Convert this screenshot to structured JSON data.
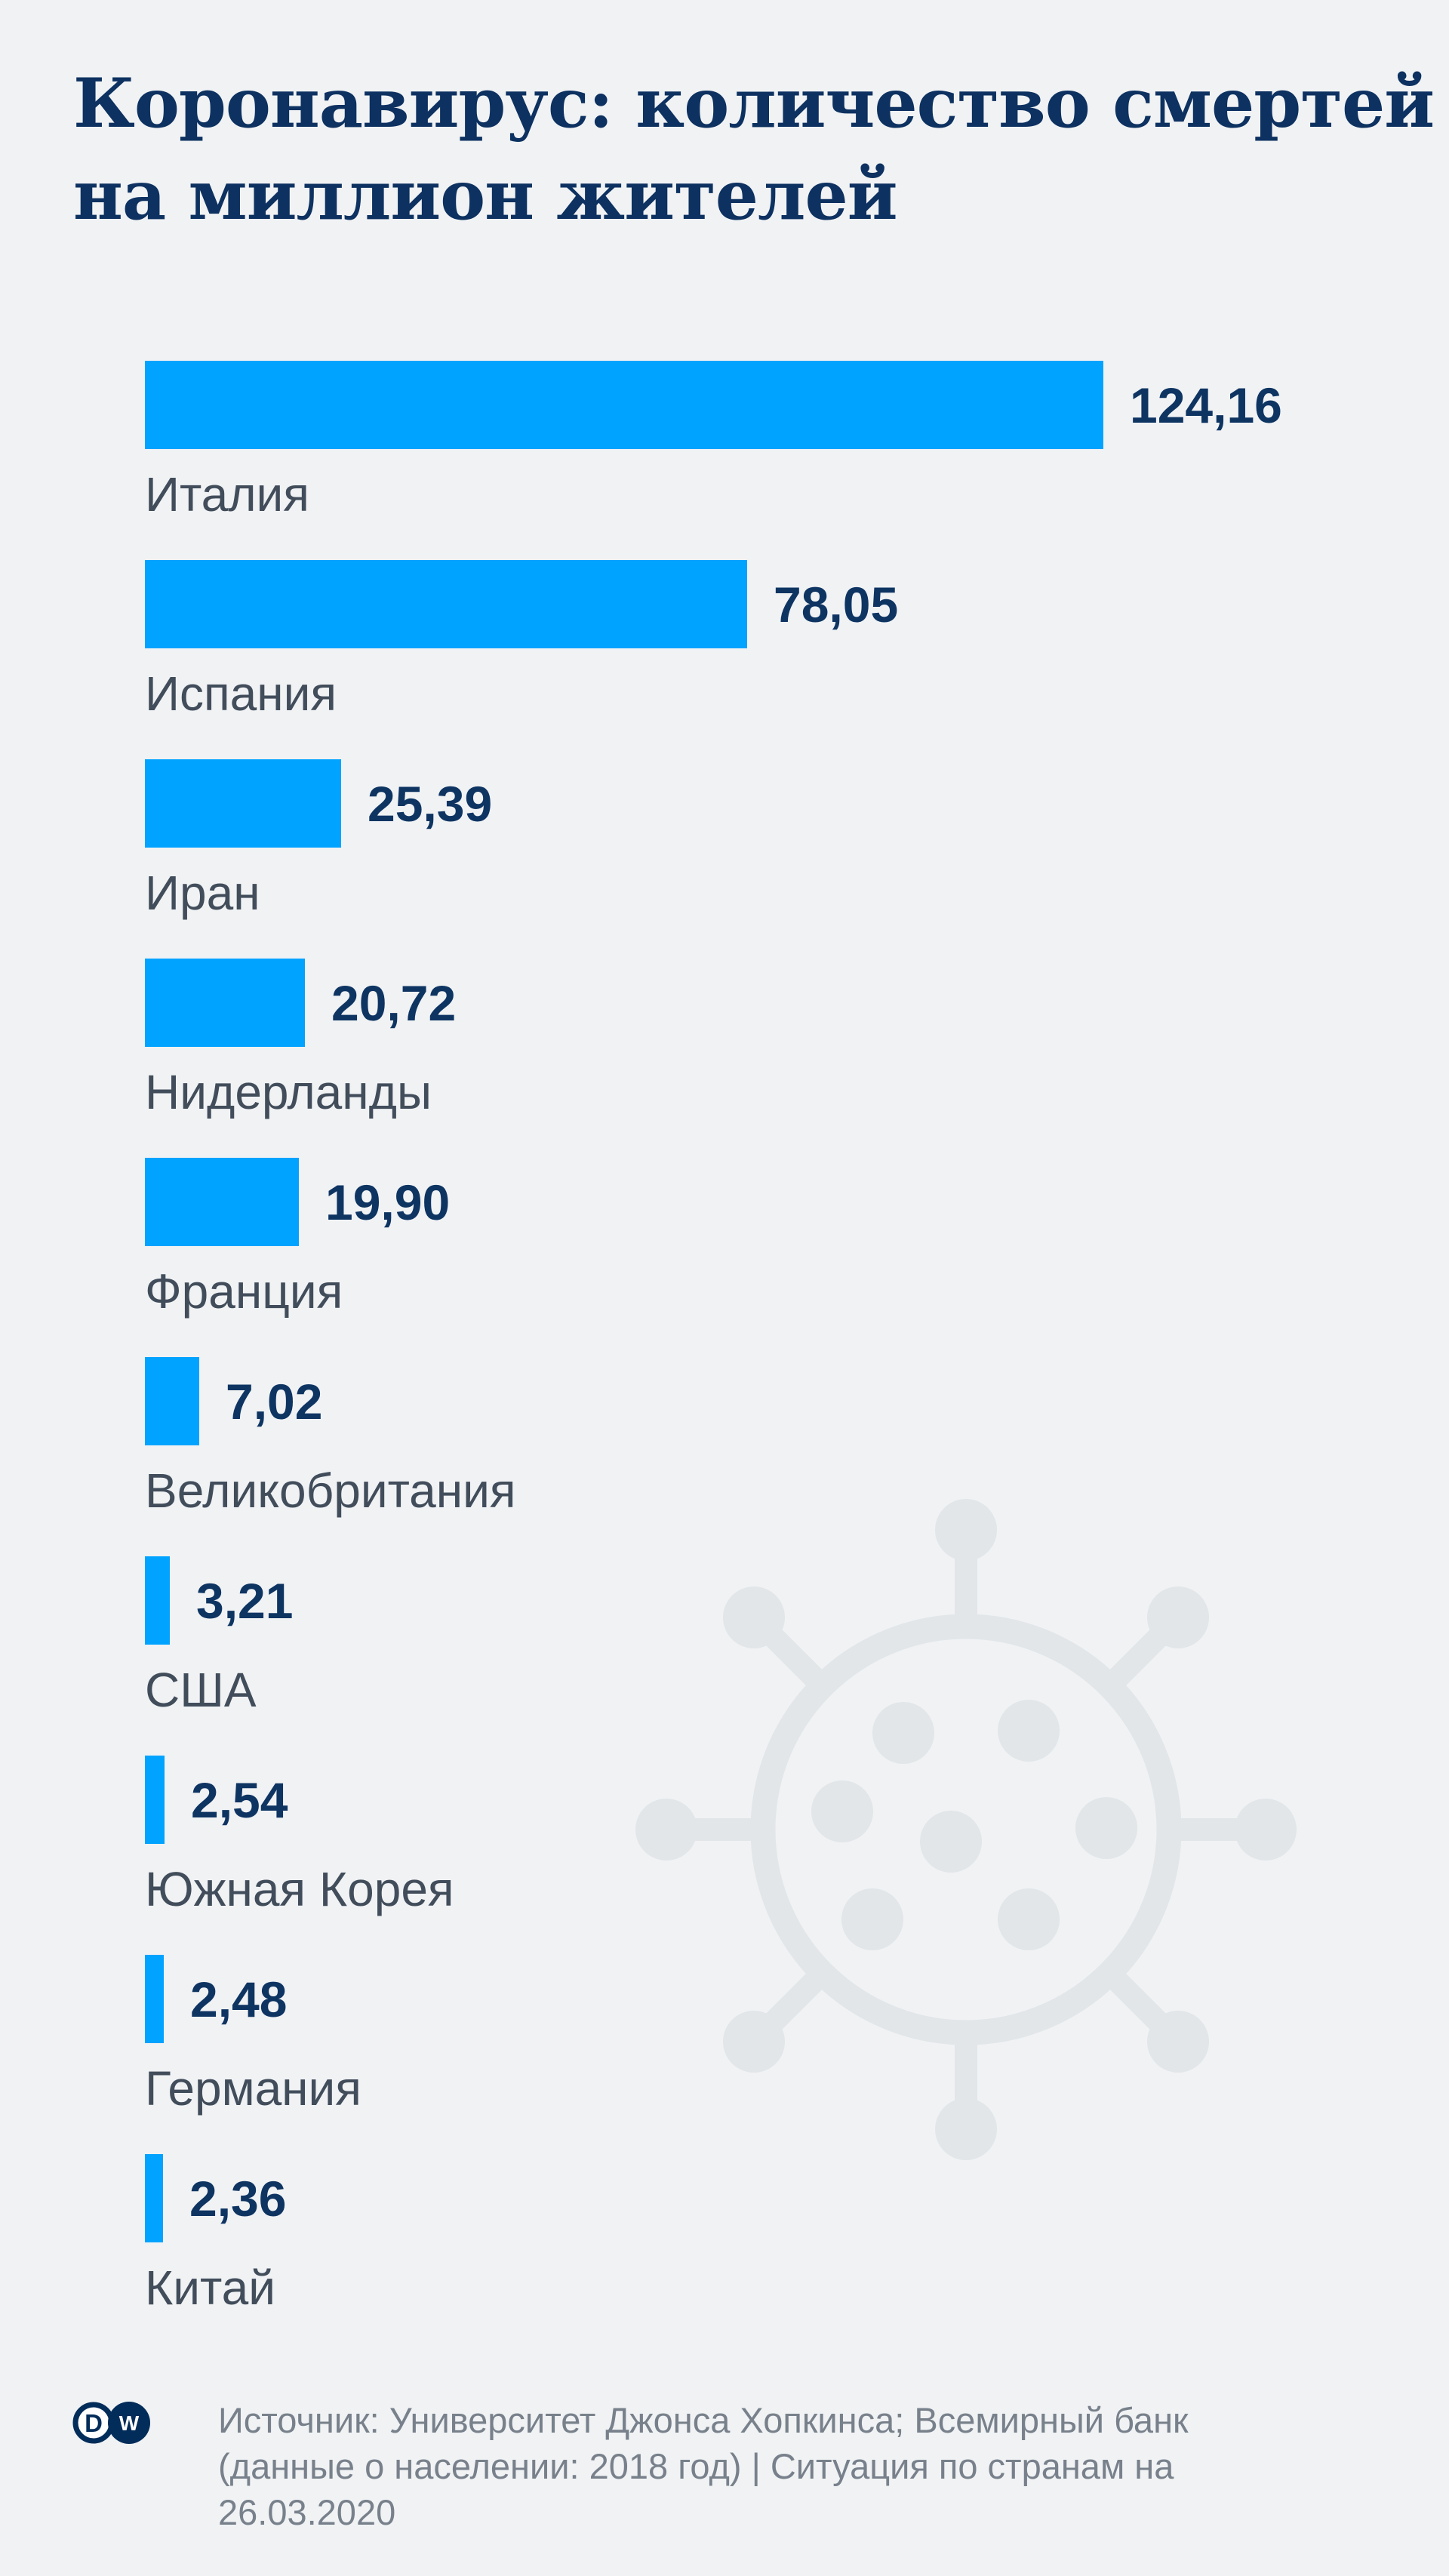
{
  "page": {
    "background": "#f0f2f4"
  },
  "title": {
    "lines": [
      "Коронавирус: количество смертей",
      "на миллион жителей"
    ],
    "color": "#0d3160"
  },
  "chart_data": {
    "type": "bar",
    "orientation": "horizontal",
    "title": "Коронавирус: количество смертей на миллион жителей",
    "categories": [
      "Италия",
      "Испания",
      "Иран",
      "Нидерланды",
      "Франция",
      "Великобритания",
      "США",
      "Южная Корея",
      "Германия",
      "Китай"
    ],
    "values": [
      124.16,
      78.05,
      25.39,
      20.72,
      19.9,
      7.02,
      3.21,
      2.54,
      2.48,
      2.36
    ],
    "value_labels": [
      "124,16",
      "78,05",
      "25,39",
      "20,72",
      "19,90",
      "7,02",
      "3,21",
      "2,54",
      "2,48",
      "2,36"
    ],
    "xlim": [
      0,
      124.16
    ],
    "grid": false,
    "legend": false,
    "axes_hidden": true,
    "bar_color": "#00a3ff",
    "value_color": "#0e3462",
    "label_color": "#424d5b"
  },
  "watermark": {
    "icon": "coronavirus-icon",
    "color": "#e2e6e9"
  },
  "footer": {
    "logo": {
      "name": "dw-logo",
      "letters": [
        "D",
        "W"
      ],
      "color": "#022c59"
    },
    "source_lines": [
      "Источник: Университет Джонса Хопкинса; Всемирный банк",
      "(данные о населении: 2018 год) | Ситуация по странам на",
      "26.03.2020"
    ],
    "text_color": "#78818b"
  }
}
